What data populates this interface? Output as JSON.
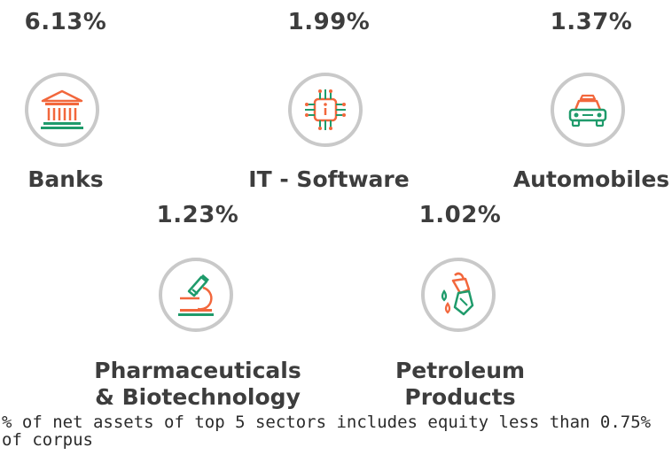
{
  "colors": {
    "green": "#1f9b6b",
    "orange": "#f2673c",
    "circle_border": "#c9c9c9",
    "text": "#3d3d3d"
  },
  "sectors": [
    {
      "name": "Banks",
      "percent": "6.13%",
      "icon": "bank-icon"
    },
    {
      "name": "IT - Software",
      "percent": "1.99%",
      "icon": "chip-icon"
    },
    {
      "name": "Automobiles",
      "percent": "1.37%",
      "icon": "car-icon"
    },
    {
      "name_line1": "Pharmaceuticals",
      "name_line2": "& Biotechnology",
      "percent": "1.23%",
      "icon": "microscope-icon"
    },
    {
      "name_line1": "Petroleum",
      "name_line2": "Products",
      "percent": "1.02%",
      "icon": "fuel-nozzle-icon"
    }
  ],
  "footnote": "% of net assets of top 5 sectors includes equity less than 0.75% of corpus"
}
